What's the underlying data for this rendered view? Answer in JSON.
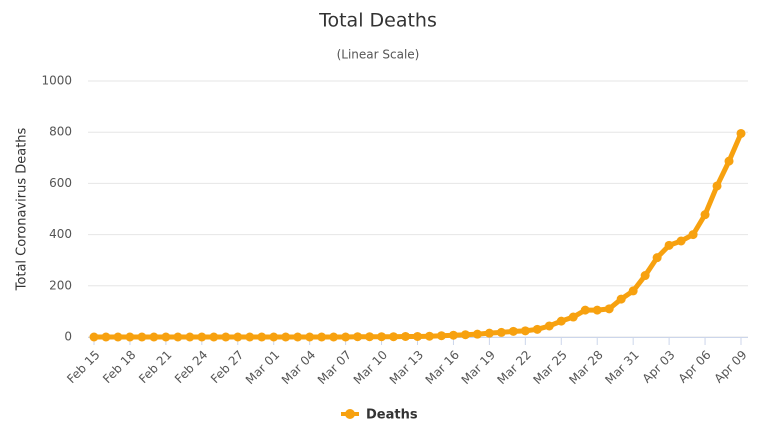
{
  "chart_data": {
    "type": "line",
    "title": "Total Deaths",
    "subtitle": "(Linear Scale)",
    "y_label": "Total Coronavirus Deaths",
    "categories": [
      "Feb 15",
      null,
      null,
      "Feb 18",
      null,
      null,
      "Feb 21",
      null,
      null,
      "Feb 24",
      null,
      null,
      "Feb 27",
      null,
      null,
      "Mar 01",
      null,
      null,
      "Mar 04",
      null,
      null,
      "Mar 07",
      null,
      null,
      "Mar 10",
      null,
      null,
      "Mar 13",
      null,
      null,
      "Mar 16",
      null,
      null,
      "Mar 19",
      null,
      null,
      "Mar 22",
      null,
      null,
      "Mar 25",
      null,
      null,
      "Mar 28",
      null,
      null,
      "Mar 31",
      null,
      null,
      "Apr 03",
      null,
      null,
      "Apr 06",
      null,
      null,
      "Apr 09"
    ],
    "series": [
      {
        "name": "Deaths",
        "color": "#f7a10f",
        "values": [
          0,
          0,
          0,
          0,
          0,
          0,
          0,
          0,
          0,
          0,
          0,
          0,
          0,
          0,
          0,
          0,
          0,
          0,
          0,
          0,
          0,
          0,
          1,
          1,
          1,
          1,
          2,
          2,
          3,
          5,
          7,
          9,
          11,
          15,
          18,
          22,
          24,
          30,
          43,
          62,
          78,
          105,
          105,
          110,
          148,
          180,
          240,
          310,
          358,
          375,
          400,
          478,
          590,
          687,
          795
        ]
      }
    ],
    "ylim": [
      0,
      1000
    ],
    "yticks": [
      0,
      200,
      400,
      600,
      800,
      1000
    ],
    "grid": true,
    "legend": "bottom"
  }
}
